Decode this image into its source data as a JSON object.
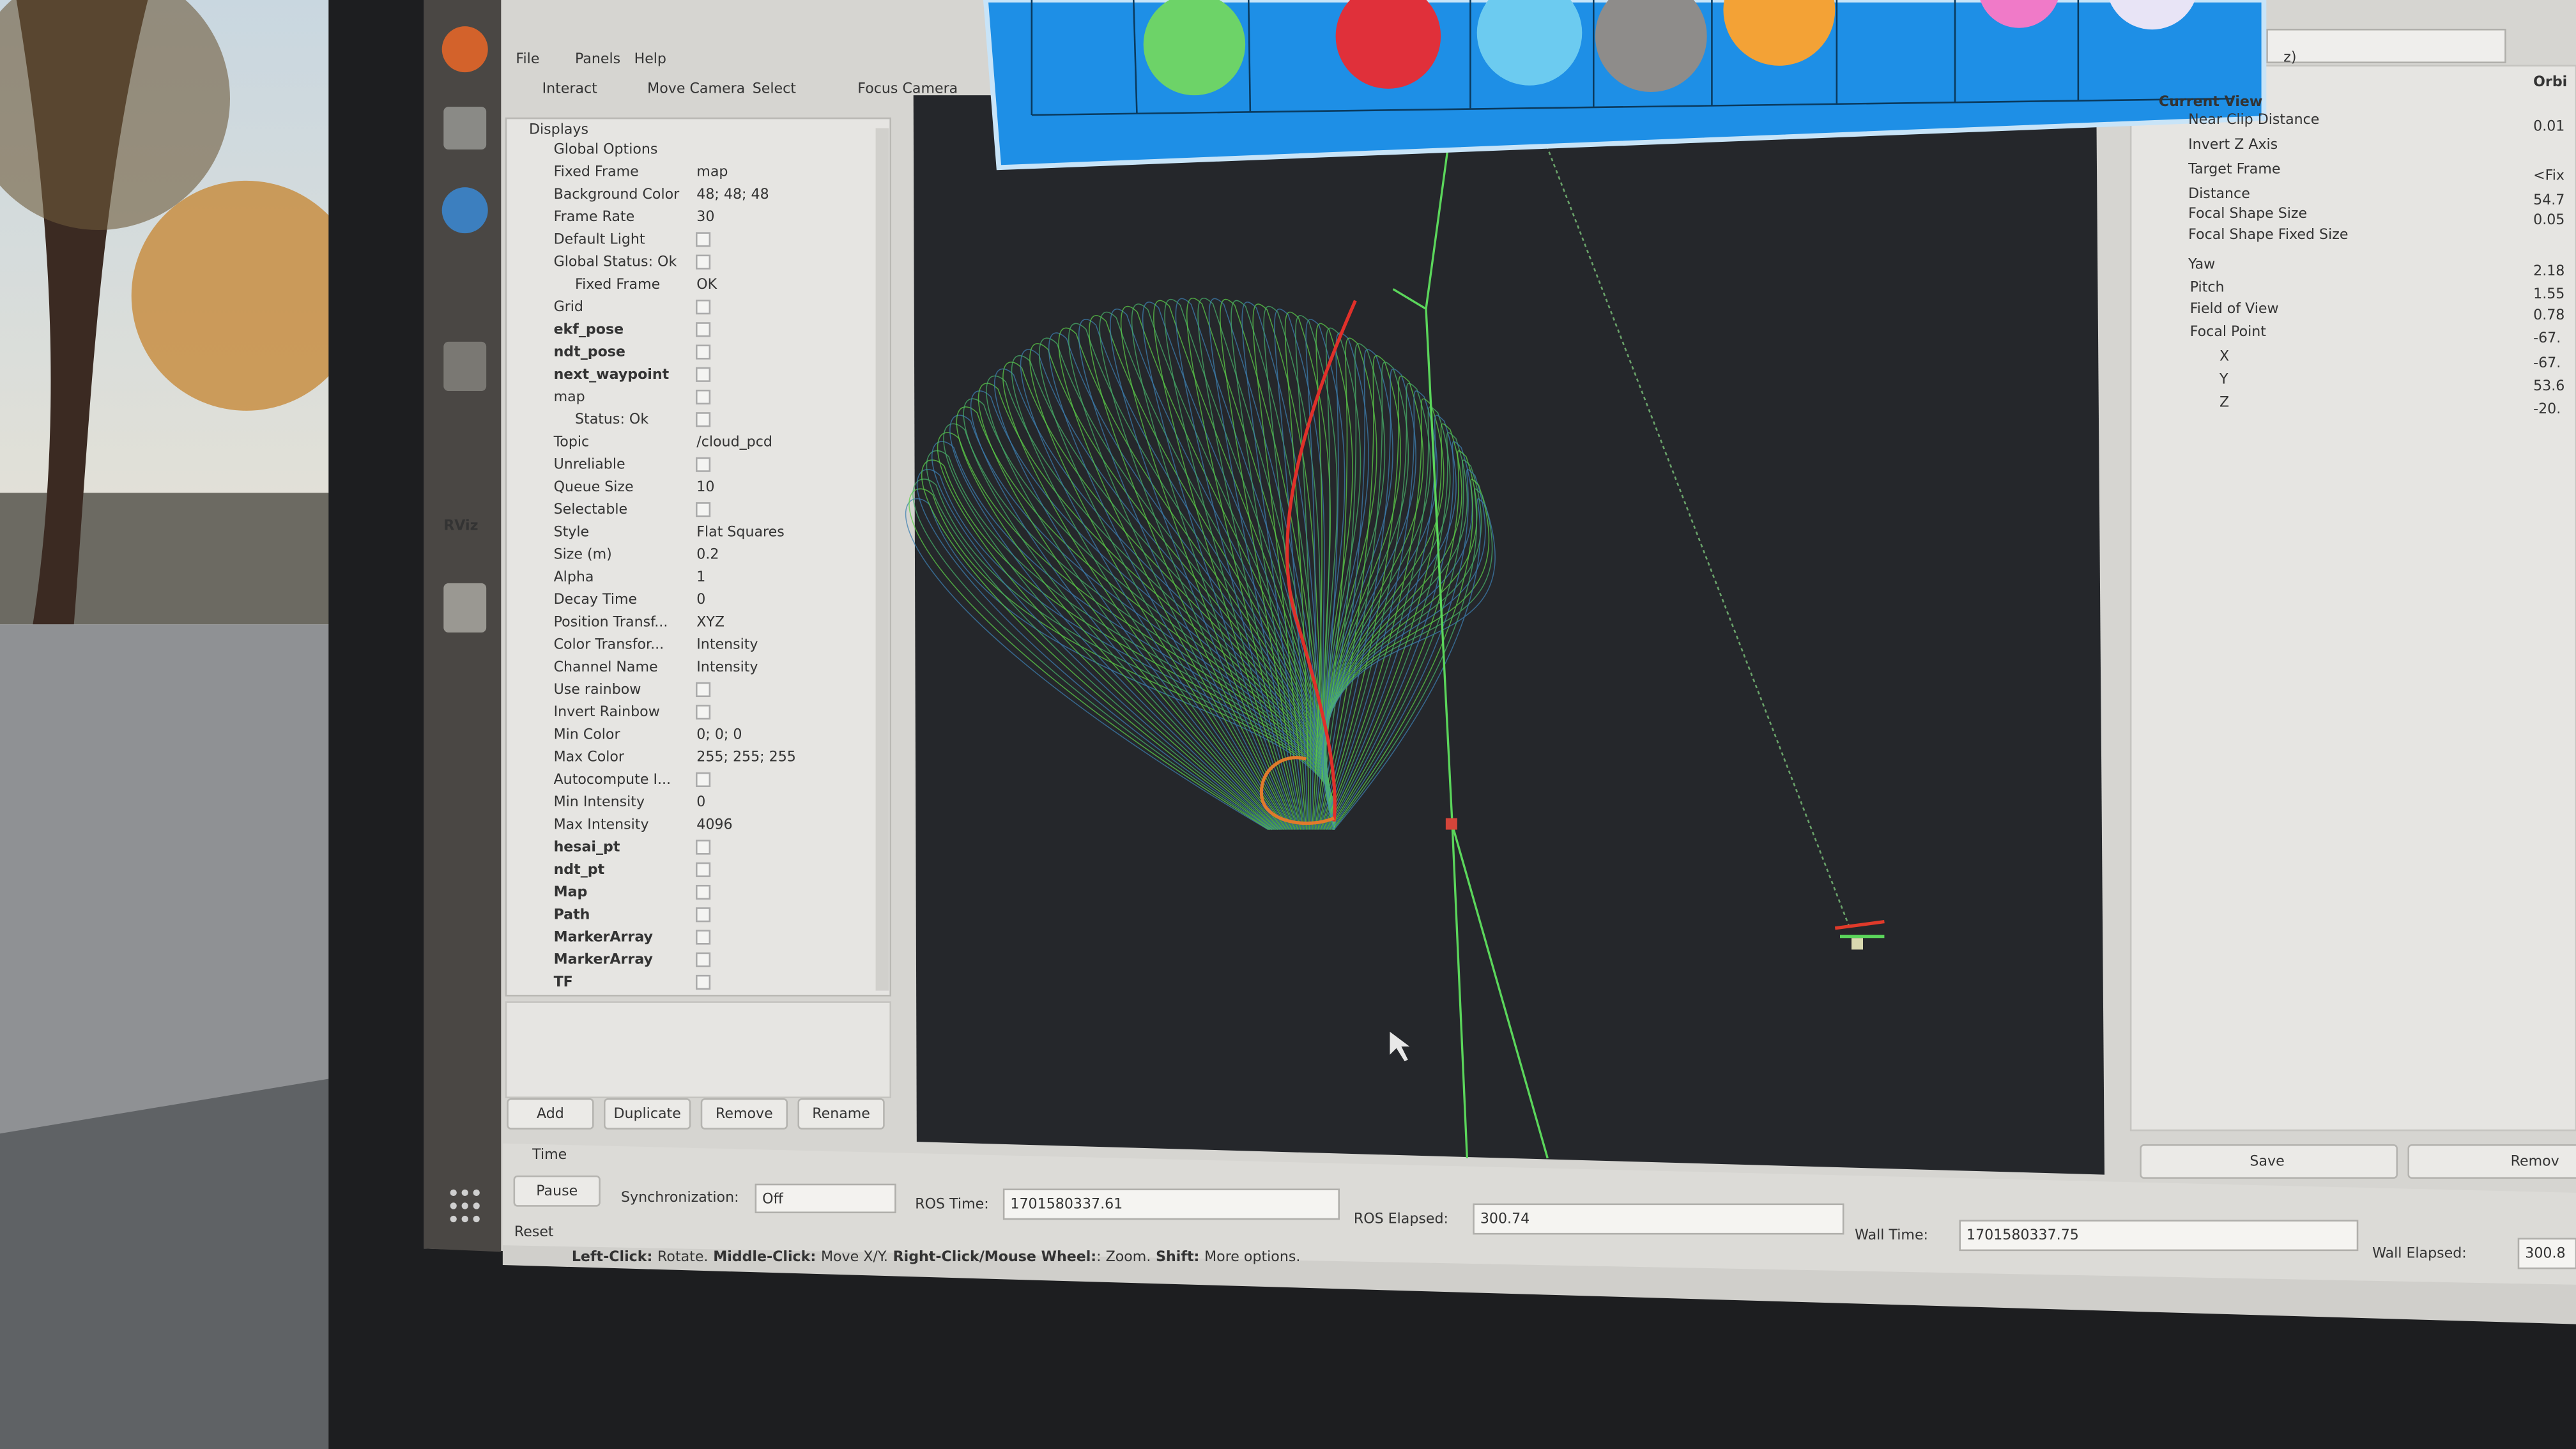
{
  "window": {
    "menu": [
      "File",
      "Panels",
      "Help"
    ],
    "toolbar": [
      "Interact",
      "Move Camera",
      "Select",
      "Focus Camera"
    ]
  },
  "launcher": {
    "logo": "RViz"
  },
  "displays": {
    "title": "Displays",
    "rows": [
      {
        "label": "Global Options"
      },
      {
        "label": "Fixed Frame",
        "value": "map"
      },
      {
        "label": "Background Color",
        "value": "48; 48; 48"
      },
      {
        "label": "Frame Rate",
        "value": "30"
      },
      {
        "label": "Default Light"
      },
      {
        "label": "Global Status: Ok"
      },
      {
        "label": "Fixed Frame",
        "value": "OK"
      },
      {
        "label": "Grid"
      },
      {
        "label": "ekf_pose"
      },
      {
        "label": "ndt_pose"
      },
      {
        "label": "next_waypoint"
      },
      {
        "label": "map"
      },
      {
        "label": "Status: Ok"
      },
      {
        "label": "Topic",
        "value": "/cloud_pcd"
      },
      {
        "label": "Unreliable"
      },
      {
        "label": "Queue Size",
        "value": "10"
      },
      {
        "label": "Selectable"
      },
      {
        "label": "Style",
        "value": "Flat Squares"
      },
      {
        "label": "Size (m)",
        "value": "0.2"
      },
      {
        "label": "Alpha",
        "value": "1"
      },
      {
        "label": "Decay Time",
        "value": "0"
      },
      {
        "label": "Position Transf...",
        "value": "XYZ"
      },
      {
        "label": "Color Transfor...",
        "value": "Intensity"
      },
      {
        "label": "Channel Name",
        "value": "Intensity"
      },
      {
        "label": "Use rainbow"
      },
      {
        "label": "Invert Rainbow"
      },
      {
        "label": "Min Color",
        "value": "0; 0; 0"
      },
      {
        "label": "Max Color",
        "value": "255; 255; 255"
      },
      {
        "label": "Autocompute I..."
      },
      {
        "label": "Min Intensity",
        "value": "0"
      },
      {
        "label": "Max Intensity",
        "value": "4096"
      },
      {
        "label": "hesai_pt"
      },
      {
        "label": "ndt_pt"
      },
      {
        "label": "Map"
      },
      {
        "label": "Path"
      },
      {
        "label": "MarkerArray"
      },
      {
        "label": "MarkerArray"
      },
      {
        "label": "TF"
      }
    ],
    "buttons": [
      "Add",
      "Duplicate",
      "Remove",
      "Rename"
    ]
  },
  "views": {
    "selector": "z)",
    "type": "Orbi",
    "rows": [
      {
        "label": "Current View"
      },
      {
        "label": "Near Clip Distance",
        "value": "0.01"
      },
      {
        "label": "Invert Z Axis"
      },
      {
        "label": "Target Frame",
        "value": "<Fix"
      },
      {
        "label": "Distance",
        "value": "54.7"
      },
      {
        "label": "Focal Shape Size",
        "value": "0.05"
      },
      {
        "label": "Focal Shape Fixed Size"
      },
      {
        "label": "Yaw",
        "value": "2.18"
      },
      {
        "label": "Pitch",
        "value": "1.55"
      },
      {
        "label": "Field of View",
        "value": "0.78"
      },
      {
        "label": "Focal Point",
        "value": "-67."
      },
      {
        "label": "X",
        "value": "-67."
      },
      {
        "label": "Y",
        "value": "53.6"
      },
      {
        "label": "Z",
        "value": "-20."
      }
    ],
    "buttons": [
      "Save",
      "Remov"
    ]
  },
  "time": {
    "title": "Time",
    "pause": "Pause",
    "sync_label": "Synchronization:",
    "sync_value": "Off",
    "fields": [
      {
        "label": "ROS Time:",
        "value": "1701580337.61"
      },
      {
        "label": "ROS Elapsed:",
        "value": "300.74"
      },
      {
        "label": "Wall Time:",
        "value": "1701580337.75"
      },
      {
        "label": "Wall Elapsed:",
        "value": "300.8"
      }
    ],
    "reset": "Reset",
    "hint": [
      "Left-Click:",
      "Rotate.",
      "Middle-Click:",
      "Move X/Y.",
      "Right-Click/Mouse Wheel:",
      ": Zoom.",
      "Shift:",
      "More options."
    ]
  }
}
